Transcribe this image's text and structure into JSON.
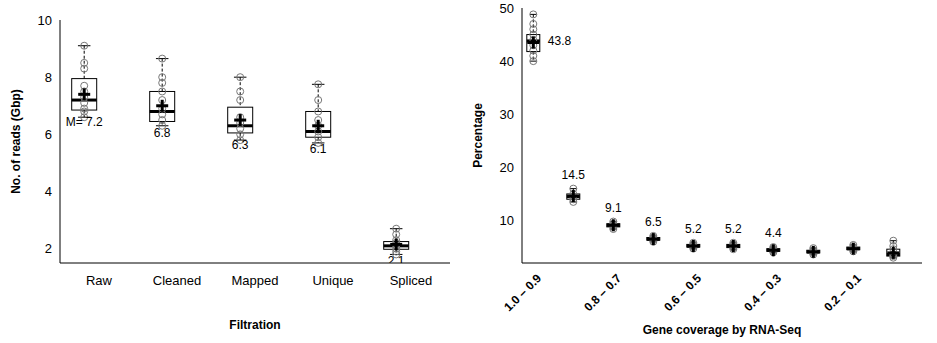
{
  "chart_data": [
    {
      "type": "box",
      "xlabel": "Filtration",
      "ylabel": "No. of reads (Gbp)",
      "categories": [
        "Raw",
        "Cleaned",
        "Mapped",
        "Unique",
        "Spliced"
      ],
      "whisker_low": [
        6.6,
        6.3,
        5.8,
        5.7,
        1.8
      ],
      "q1": [
        6.85,
        6.45,
        6.05,
        5.9,
        1.98
      ],
      "median": [
        7.2,
        6.8,
        6.3,
        6.1,
        2.1
      ],
      "q3": [
        7.95,
        7.5,
        6.95,
        6.8,
        2.25
      ],
      "whisker_high": [
        9.1,
        8.65,
        8.0,
        7.75,
        2.7
      ],
      "mean": [
        7.4,
        7.0,
        6.5,
        6.3,
        2.15
      ],
      "points": [
        [
          6.6,
          6.8,
          6.9,
          7.1,
          7.3,
          7.5,
          7.7,
          8.3,
          8.5,
          9.1
        ],
        [
          6.3,
          6.5,
          6.7,
          6.9,
          7.2,
          7.5,
          7.8,
          8.0,
          8.65
        ],
        [
          5.8,
          6.0,
          6.2,
          6.4,
          6.6,
          7.2,
          7.5,
          8.0
        ],
        [
          5.7,
          5.9,
          6.1,
          6.3,
          6.5,
          6.8,
          7.2,
          7.75
        ],
        [
          1.8,
          1.9,
          2.0,
          2.1,
          2.2,
          2.3,
          2.5,
          2.7
        ]
      ],
      "annotations": [
        "M= 7.2",
        "6.8",
        "6.3",
        "6.1",
        "2.1"
      ],
      "ylim": [
        1.5,
        10
      ],
      "yticks": [
        2,
        4,
        6,
        8,
        10
      ],
      "grid": false,
      "color": "#000000"
    },
    {
      "type": "box",
      "xlabel": "Gene coverage by RNA-Seq",
      "ylabel": "Percentage",
      "categories": [
        "1.0 – 0.9",
        null,
        "0.8 – 0.7",
        null,
        "0.6 – 0.5",
        null,
        "0.4 – 0.3",
        null,
        "0.2 – 0.1",
        null
      ],
      "whisker_low": [
        40,
        13.5,
        8.4,
        6.0,
        4.7,
        4.6,
        4.0,
        3.6,
        4.2,
        3.0
      ],
      "q1": [
        41.8,
        14.0,
        8.8,
        6.3,
        5.0,
        4.9,
        4.2,
        3.9,
        4.5,
        3.3
      ],
      "median": [
        43.8,
        14.5,
        9.1,
        6.5,
        5.2,
        5.2,
        4.4,
        4.1,
        4.7,
        3.6
      ],
      "q3": [
        45,
        15,
        9.4,
        6.8,
        5.5,
        5.5,
        4.7,
        4.4,
        5.0,
        4.6
      ],
      "whisker_high": [
        48.8,
        16,
        9.8,
        7.1,
        5.8,
        5.8,
        5.0,
        4.8,
        5.4,
        6.2
      ],
      "mean": [
        43.5,
        14.6,
        9.1,
        6.5,
        5.2,
        5.2,
        4.4,
        4.1,
        4.7,
        3.9
      ],
      "points": [
        [
          40,
          41,
          42,
          43,
          44,
          45,
          46,
          47,
          48.8
        ],
        [
          13.5,
          14,
          14.5,
          15,
          16
        ],
        [
          8.4,
          8.8,
          9.1,
          9.4,
          9.8
        ],
        [
          6.0,
          6.3,
          6.5,
          6.8,
          7.1
        ],
        [
          4.7,
          5.0,
          5.2,
          5.5,
          5.8
        ],
        [
          4.6,
          4.9,
          5.2,
          5.5,
          5.8
        ],
        [
          4.0,
          4.2,
          4.4,
          4.7,
          5.0
        ],
        [
          3.6,
          3.9,
          4.1,
          4.4,
          4.8
        ],
        [
          4.2,
          4.5,
          4.7,
          5.0,
          5.4
        ],
        [
          3.0,
          3.3,
          3.6,
          4.6,
          5.2,
          6.2
        ]
      ],
      "annotations": [
        "43.8",
        "14.5",
        "9.1",
        "6.5",
        "5.2",
        "5.2",
        "4.4",
        null,
        null,
        null
      ],
      "ylim": [
        2,
        50
      ],
      "yticks": [
        10,
        20,
        30,
        40,
        50
      ],
      "grid": false,
      "color": "#000000"
    }
  ]
}
